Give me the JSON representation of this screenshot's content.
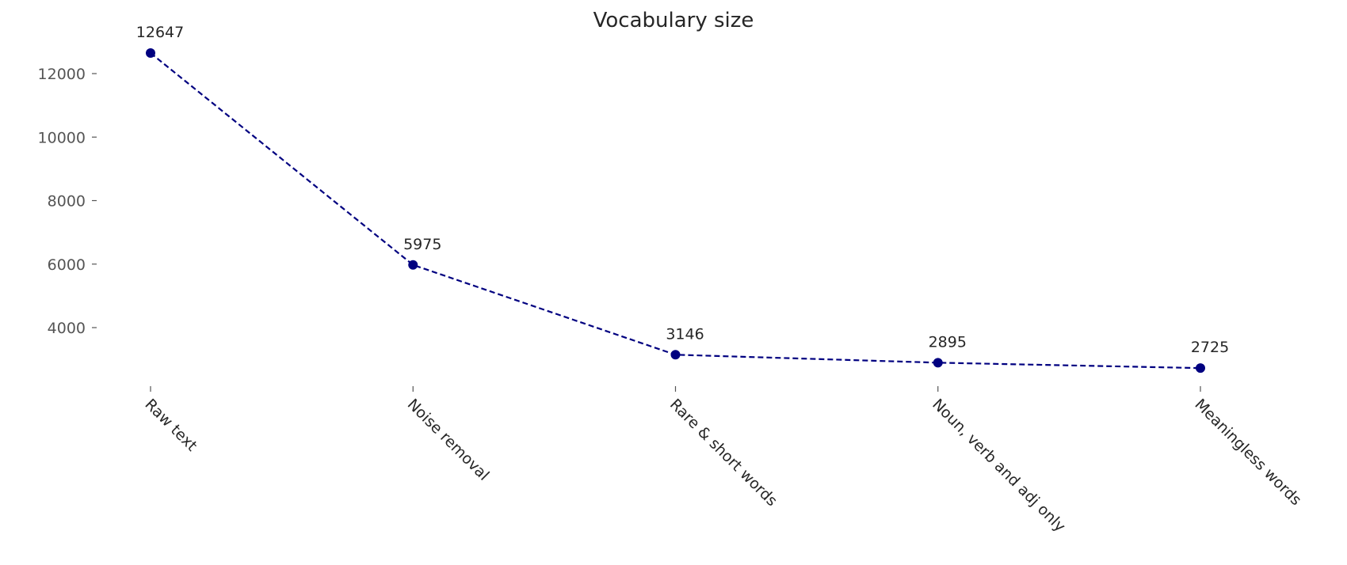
{
  "chart_data": {
    "type": "line",
    "title": "Vocabulary size",
    "xlabel": "",
    "ylabel": "",
    "categories": [
      "Raw text",
      "Noise removal",
      "Rare & short words",
      "Noun, verb and adj only",
      "Meaningless words"
    ],
    "series": [
      {
        "values": [
          12647,
          5975,
          3146,
          2895,
          2725
        ],
        "color": "#000080",
        "line_style": "dashed",
        "marker": "circle"
      }
    ],
    "data_labels": [
      "12647",
      "5975",
      "3146",
      "2895",
      "2725"
    ],
    "yticks": [
      4000,
      6000,
      8000,
      10000,
      12000
    ],
    "ytick_labels": [
      "4000",
      "6000",
      "8000",
      "10000",
      "12000"
    ],
    "ylim": [
      2100,
      13400
    ],
    "grid": false,
    "legend": "none",
    "x_tick_label_rotation": 45
  }
}
